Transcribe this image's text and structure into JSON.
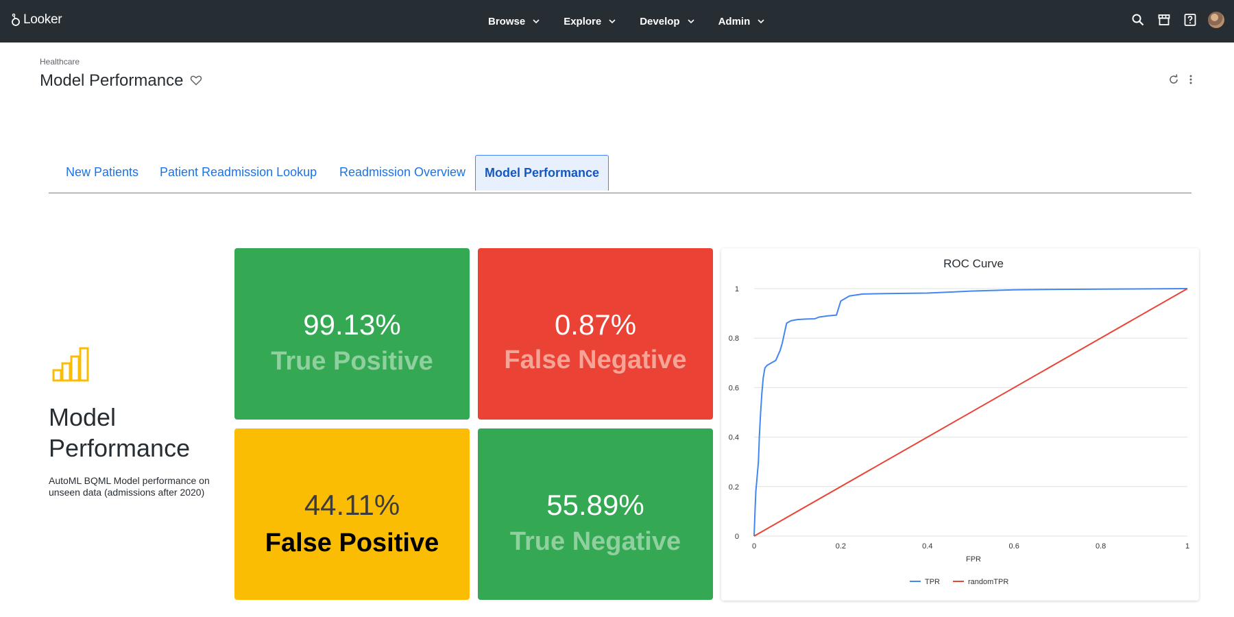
{
  "app": {
    "logo_text": "Looker",
    "nav": [
      {
        "label": "Browse"
      },
      {
        "label": "Explore"
      },
      {
        "label": "Develop"
      },
      {
        "label": "Admin"
      }
    ],
    "top_icons": [
      "search-icon",
      "marketplace-icon",
      "help-icon",
      "avatar"
    ]
  },
  "dashboard": {
    "breadcrumb": "Healthcare",
    "title": "Model Performance",
    "tabs": [
      {
        "label": "New Patients",
        "active": false
      },
      {
        "label": "Patient Readmission Lookup",
        "active": false
      },
      {
        "label": "Readmission Overview",
        "active": false
      },
      {
        "label": "Model Performance",
        "active": true
      }
    ]
  },
  "text_tile": {
    "icon": "bar-chart-icon",
    "title": "Model Performance",
    "description": "AutoML BQML Model performance on unseen data (admissions after 2020)"
  },
  "kpis": [
    {
      "value": "99.13%",
      "label": "True Positive",
      "bg": "#34a853",
      "value_color": "#ffffff",
      "label_color": "#8fd09e"
    },
    {
      "value": "0.87%",
      "label": "False Negative",
      "bg": "#ea4335",
      "value_color": "#ffffff",
      "label_color": "#f6a398"
    },
    {
      "value": "44.11%",
      "label": "False Positive",
      "bg": "#fbbc04",
      "value_color": "#3c3c3c",
      "label_color": "#000000"
    },
    {
      "value": "55.89%",
      "label": "True Negative",
      "bg": "#34a853",
      "value_color": "#ffffff",
      "label_color": "#8fd09e"
    }
  ],
  "colors": {
    "topbar": "#262d33",
    "tab_accent": "#4285f4",
    "icon_yellow": "#fbbc04"
  },
  "chart_data": {
    "type": "line",
    "title": "ROC Curve",
    "xlabel": "FPR",
    "ylabel": "",
    "xlim": [
      0,
      1
    ],
    "ylim": [
      0,
      1
    ],
    "x_ticks": [
      "0",
      "0.2",
      "0.4",
      "0.6",
      "0.8",
      "1"
    ],
    "y_ticks": [
      "0",
      "0.2",
      "0.4",
      "0.6",
      "0.8",
      "1"
    ],
    "grid": true,
    "legend_position": "bottom",
    "series": [
      {
        "name": "TPR",
        "color": "#4285f4",
        "points": [
          [
            0,
            0
          ],
          [
            0.002,
            0.1
          ],
          [
            0.004,
            0.18
          ],
          [
            0.007,
            0.24
          ],
          [
            0.01,
            0.3
          ],
          [
            0.012,
            0.4
          ],
          [
            0.015,
            0.5
          ],
          [
            0.018,
            0.58
          ],
          [
            0.021,
            0.64
          ],
          [
            0.025,
            0.68
          ],
          [
            0.03,
            0.69
          ],
          [
            0.04,
            0.7
          ],
          [
            0.05,
            0.71
          ],
          [
            0.06,
            0.75
          ],
          [
            0.065,
            0.78
          ],
          [
            0.07,
            0.82
          ],
          [
            0.075,
            0.86
          ],
          [
            0.085,
            0.87
          ],
          [
            0.1,
            0.875
          ],
          [
            0.12,
            0.877
          ],
          [
            0.14,
            0.878
          ],
          [
            0.15,
            0.885
          ],
          [
            0.17,
            0.89
          ],
          [
            0.19,
            0.893
          ],
          [
            0.2,
            0.95
          ],
          [
            0.22,
            0.97
          ],
          [
            0.25,
            0.978
          ],
          [
            0.3,
            0.98
          ],
          [
            0.4,
            0.982
          ],
          [
            0.44,
            0.985
          ],
          [
            0.5,
            0.99
          ],
          [
            0.6,
            0.995
          ],
          [
            0.7,
            0.997
          ],
          [
            0.8,
            0.998
          ],
          [
            0.9,
            0.999
          ],
          [
            1,
            1
          ]
        ]
      },
      {
        "name": "randomTPR",
        "color": "#ea4335",
        "points": [
          [
            0,
            0
          ],
          [
            1,
            1
          ]
        ]
      }
    ]
  }
}
